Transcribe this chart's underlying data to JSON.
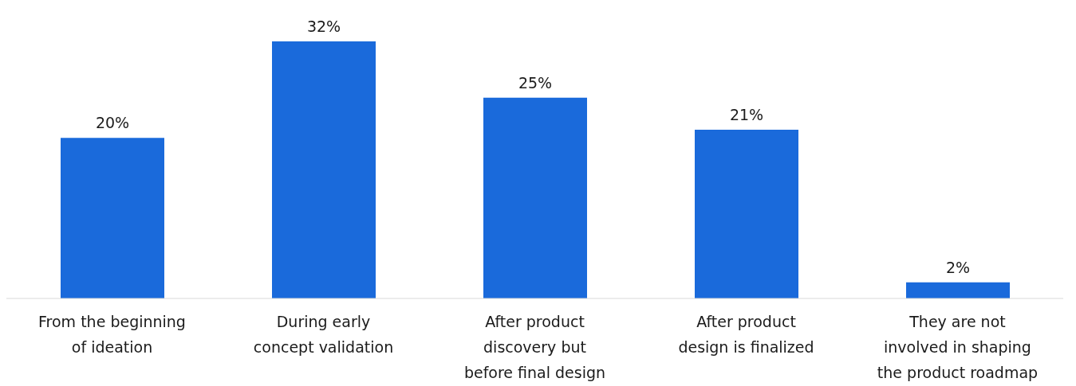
{
  "chart_data": {
    "type": "bar",
    "categories": [
      "From the beginning of ideation",
      "During early concept validation",
      "After product discovery but before final design",
      "After product design is finalized",
      "They are not involved in shaping the product roadmap"
    ],
    "values": [
      20,
      32,
      25,
      21,
      2
    ],
    "value_labels": [
      "20%",
      "32%",
      "25%",
      "21%",
      "2%"
    ],
    "color": "#1a6adb",
    "grid": false
  }
}
